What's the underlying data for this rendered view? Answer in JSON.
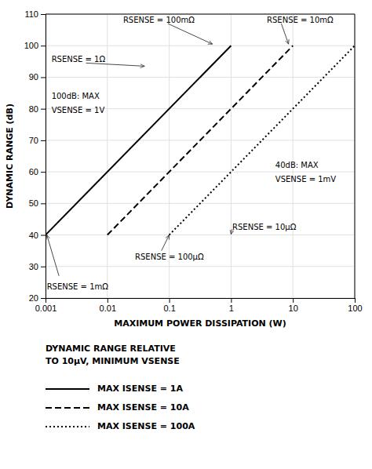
{
  "chart_data": {
    "type": "line",
    "xlabel": "MAXIMUM POWER DISSIPATION (W)",
    "ylabel": "DYNAMIC RANGE (dB)",
    "log": "x",
    "grid": true,
    "legend": "bottom",
    "xlim": [
      0.001,
      100
    ],
    "ylim": [
      20,
      110
    ],
    "xticks": [
      0.001,
      0.01,
      0.1,
      1,
      10,
      100
    ],
    "yticks": [
      20,
      30,
      40,
      50,
      60,
      70,
      80,
      90,
      100,
      110
    ],
    "series": [
      {
        "name": "MAX ISENSE = 1A",
        "color": "#000000",
        "line_style": "solid",
        "x": [
          0.001,
          1.0
        ],
        "values": [
          40,
          100
        ]
      },
      {
        "name": "MAX ISENSE = 10A",
        "color": "#000000",
        "line_style": "dashed",
        "x": [
          0.01,
          10.0
        ],
        "values": [
          40,
          100
        ]
      },
      {
        "name": "MAX ISENSE = 100A",
        "color": "#000000",
        "line_style": "dotted",
        "x": [
          0.1,
          100.0
        ],
        "values": [
          40,
          100
        ]
      }
    ],
    "legend_title": [
      "DYNAMIC RANGE RELATIVE",
      "TO 10μV, MINIMUM VSENSE"
    ],
    "annotations": [
      {
        "text": "RSENSE = 1Ω",
        "x": 0.00125,
        "y": 95.5,
        "arrow_from": [
          0.0045,
          94.5
        ],
        "arrow_to": [
          0.04,
          93.5
        ]
      },
      {
        "text": "RSENSE = 100mΩ",
        "x": 0.018,
        "y": 108,
        "arrow_from": [
          0.095,
          107
        ],
        "arrow_to": [
          0.5,
          100.5
        ]
      },
      {
        "text": "RSENSE = 10mΩ",
        "x": 3.8,
        "y": 108,
        "arrow_from": [
          6.5,
          107
        ],
        "arrow_to": [
          8.5,
          100.5
        ]
      },
      {
        "text": "RSENSE = 1mΩ",
        "x": 0.00105,
        "y": 23.5,
        "arrow_from": [
          0.00165,
          27
        ],
        "arrow_to": [
          0.00105,
          40
        ]
      },
      {
        "text": "RSENSE = 100μΩ",
        "x": 0.028,
        "y": 33,
        "arrow_from": [
          0.075,
          35
        ],
        "arrow_to": [
          0.1,
          40
        ]
      },
      {
        "text": "RSENSE = 10μΩ",
        "x": 1.05,
        "y": 42.5,
        "arrow_from": [
          1.04,
          41.8
        ],
        "arrow_to": [
          1.0,
          40.2
        ]
      },
      {
        "text": "100dB: MAX",
        "x": 0.00125,
        "y": 84
      },
      {
        "text": "VSENSE = 1V",
        "x": 0.00125,
        "y": 79.5
      },
      {
        "text": "40dB: MAX",
        "x": 5.2,
        "y": 62
      },
      {
        "text": "VSENSE = 1mV",
        "x": 5.2,
        "y": 57.5
      }
    ]
  }
}
